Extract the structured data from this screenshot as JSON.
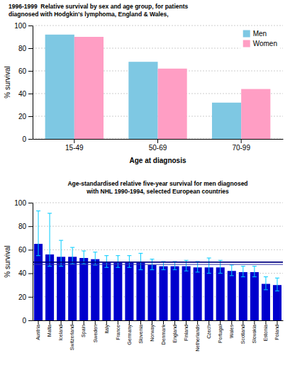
{
  "chart_data": [
    {
      "type": "bar",
      "title": "1996-1999  Relative survival by sex and age group, for patients",
      "subtitle": "diagnosed with Hodgkin's lymphoma, England & Wales,",
      "categories": [
        "15-49",
        "50-69",
        "70-99"
      ],
      "series": [
        {
          "name": "Men",
          "color": "#7EC8E3",
          "values": [
            92,
            68,
            32
          ]
        },
        {
          "name": "Women",
          "color": "#FF9EC4",
          "values": [
            90,
            62,
            44
          ]
        }
      ],
      "xlabel": "Age at diagnosis",
      "ylabel": "% survival",
      "ylim": [
        0,
        100
      ],
      "yticks": [
        0,
        20,
        40,
        60,
        80,
        100
      ],
      "grid": true,
      "legend": "upper right"
    },
    {
      "type": "bar",
      "title": "Age-standardised relative five-year survival for men diagnosed",
      "subtitle": "with NHL 1990-1994, selected European countries",
      "categories": [
        "Austria",
        "Malta",
        "Iceland",
        "Switzerland",
        "Spain",
        "Sweden",
        "Italy",
        "France",
        "Germany",
        "Slovenia",
        "Norway",
        "Denmark",
        "England",
        "Finland",
        "Netherlands",
        "Czech",
        "Portugal",
        "Wales",
        "Scotland",
        "Slovakia",
        "Estonia",
        "Poland"
      ],
      "values": [
        65,
        56,
        54,
        54,
        53,
        52,
        49,
        49,
        49,
        49,
        47,
        46,
        46,
        46,
        45,
        45,
        45,
        42,
        41,
        41,
        31,
        30
      ],
      "color": "#0000CD",
      "errors": {
        "low": [
          10,
          10,
          8,
          6,
          5,
          5,
          4,
          4,
          4,
          6,
          4,
          3,
          3,
          4,
          4,
          5,
          5,
          4,
          4,
          4,
          5,
          5
        ],
        "high": [
          28,
          35,
          14,
          8,
          6,
          6,
          6,
          6,
          6,
          8,
          5,
          4,
          4,
          5,
          5,
          8,
          6,
          5,
          5,
          5,
          6,
          6
        ],
        "color": "#00CCFF"
      },
      "reference_lines": [
        {
          "y": 49.5,
          "color": "#000080"
        },
        {
          "y": 47.5,
          "color": "#3333AA"
        }
      ],
      "ylabel": "% survival",
      "ylim": [
        0,
        100
      ],
      "yticks": [
        0,
        20,
        40,
        60,
        80,
        100
      ],
      "grid": true
    }
  ]
}
